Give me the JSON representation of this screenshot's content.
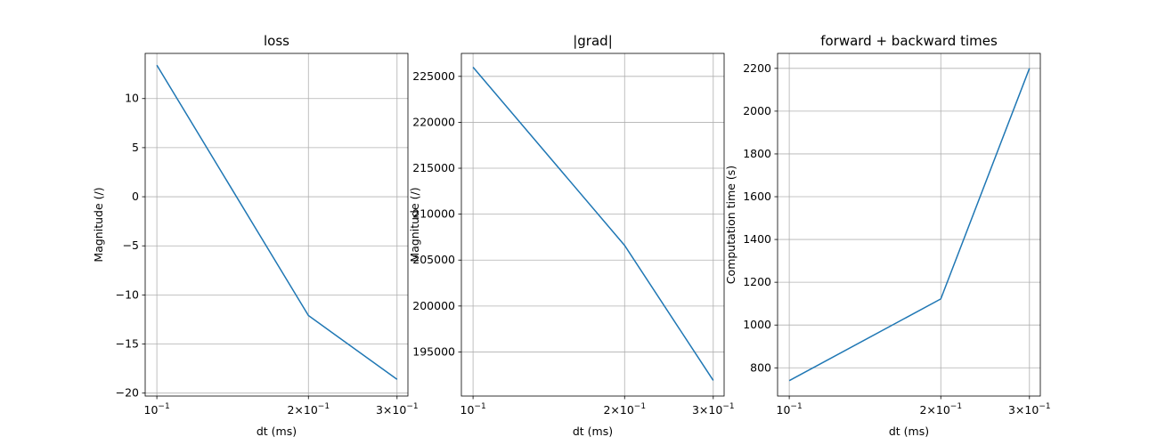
{
  "chart_data": [
    {
      "type": "line",
      "title": "loss",
      "xlabel": "dt (ms)",
      "ylabel": "Magnitude (/)",
      "xscale": "log",
      "xlim": [
        0.0948,
        0.3153
      ],
      "ylim": [
        -20.3,
        14.6
      ],
      "x": [
        0.1,
        0.2,
        0.3
      ],
      "series": [
        {
          "values": [
            13.4,
            -12.1,
            -18.6
          ]
        }
      ],
      "yticks": [
        -20,
        -15,
        -10,
        -5,
        0,
        5,
        10
      ],
      "ytick_labels": [
        "−20",
        "−15",
        "−10",
        "−5",
        "0",
        "5",
        "10"
      ],
      "xticks": [
        0.1,
        0.2,
        0.3
      ],
      "xtick_labels": [
        [
          "10",
          "−1"
        ],
        [
          "2×10",
          "−1"
        ],
        [
          "3×10",
          "−1"
        ]
      ],
      "grid": true,
      "color": "#1f77b4"
    },
    {
      "type": "line",
      "title": "|grad|",
      "xlabel": "dt (ms)",
      "ylabel": "Magnitude (/)",
      "xscale": "log",
      "xlim": [
        0.0948,
        0.3153
      ],
      "ylim": [
        190200,
        227500
      ],
      "x": [
        0.1,
        0.2,
        0.3
      ],
      "series": [
        {
          "values": [
            226000,
            206600,
            191900
          ]
        }
      ],
      "yticks": [
        195000,
        200000,
        205000,
        210000,
        215000,
        220000,
        225000
      ],
      "ytick_labels": [
        "195000",
        "200000",
        "205000",
        "210000",
        "215000",
        "220000",
        "225000"
      ],
      "xticks": [
        0.1,
        0.2,
        0.3
      ],
      "xtick_labels": [
        [
          "10",
          "−1"
        ],
        [
          "2×10",
          "−1"
        ],
        [
          "3×10",
          "−1"
        ]
      ],
      "grid": true,
      "color": "#1f77b4"
    },
    {
      "type": "line",
      "title": "forward + backward times",
      "xlabel": "dt (ms)",
      "ylabel": "Computation time (s)",
      "xscale": "log",
      "xlim": [
        0.0948,
        0.3153
      ],
      "ylim": [
        668,
        2270
      ],
      "x": [
        0.1,
        0.2,
        0.3
      ],
      "series": [
        {
          "values": [
            740,
            1122,
            2200
          ]
        }
      ],
      "yticks": [
        800,
        1000,
        1200,
        1400,
        1600,
        1800,
        2000,
        2200
      ],
      "ytick_labels": [
        "800",
        "1000",
        "1200",
        "1400",
        "1600",
        "1800",
        "2000",
        "2200"
      ],
      "xticks": [
        0.1,
        0.2,
        0.3
      ],
      "xtick_labels": [
        [
          "10",
          "−1"
        ],
        [
          "2×10",
          "−1"
        ],
        [
          "3×10",
          "−1"
        ]
      ],
      "grid": true,
      "color": "#1f77b4"
    }
  ]
}
